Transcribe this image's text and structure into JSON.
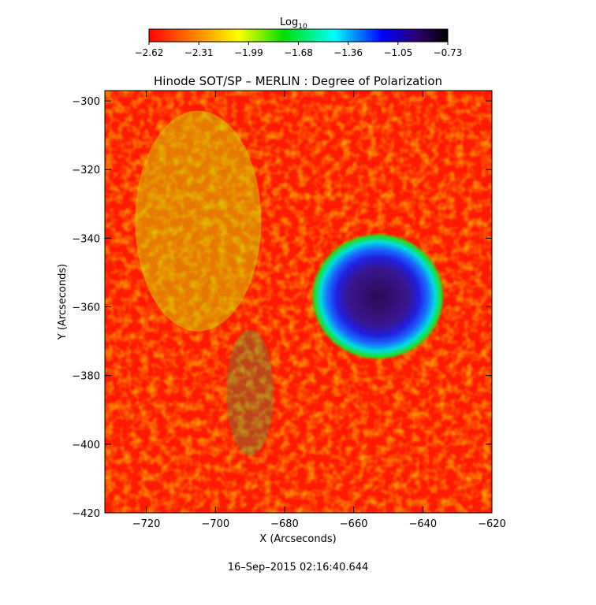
{
  "chart_data": {
    "type": "heatmap",
    "title": "Hinode SOT/SP – MERLIN : Degree of Polarization",
    "xlabel": "X (Arcseconds)",
    "ylabel": "Y (Arcseconds)",
    "xlim": [
      -732,
      -620
    ],
    "ylim": [
      -420,
      -297
    ],
    "xticks": [
      -720,
      -700,
      -680,
      -660,
      -640,
      -620
    ],
    "yticks": [
      -300,
      -320,
      -340,
      -360,
      -380,
      -400,
      -420
    ],
    "xtick_labels": [
      "−720",
      "−700",
      "−680",
      "−660",
      "−640",
      "−620"
    ],
    "ytick_labels": [
      "−300",
      "−320",
      "−340",
      "−360",
      "−380",
      "−400",
      "−420"
    ],
    "colorbar": {
      "label_base": "Log",
      "label_sub": "10",
      "range": [
        -2.62,
        -0.73
      ],
      "tick_labels": [
        "−2.62",
        "−2.31",
        "−1.99",
        "−1.68",
        "−1.36",
        "−1.05",
        "−0.73"
      ],
      "colors": [
        "#ff0000",
        "#ff7f00",
        "#ffff00",
        "#00e000",
        "#00ffff",
        "#0000ff",
        "#2b006b",
        "#000000"
      ]
    },
    "features": [
      {
        "kind": "sunspot",
        "x": -653,
        "y": -357,
        "umbra_radius": 8,
        "penumbra_radius": 16,
        "value": -0.85
      }
    ],
    "grid": false
  },
  "timestamp": "16–Sep–2015 02:16:40.644"
}
